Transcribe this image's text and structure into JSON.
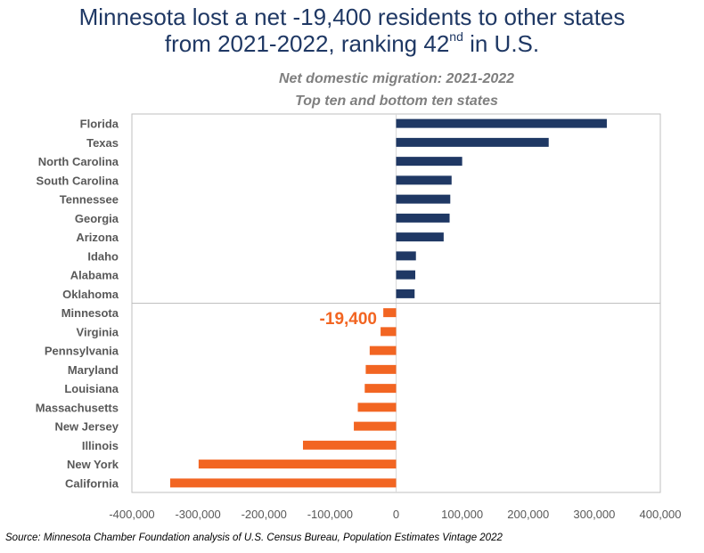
{
  "title": {
    "line1": "Minnesota lost a net -19,400 residents to other states",
    "line2_pre": "from 2021-2022, ranking 42",
    "line2_sup": "nd",
    "line2_post": " in U.S."
  },
  "source": "Source: Minnesota Chamber Foundation analysis of U.S. Census Bureau, Population Estimates Vintage 2022",
  "colors": {
    "top": "#1f3864",
    "bottom": "#f26522",
    "title": "#1f3864"
  },
  "chart_data": {
    "type": "bar",
    "orientation": "horizontal",
    "title": "Net domestic migration: 2021-2022",
    "subtitle": "Top ten and bottom ten states",
    "xlim": [
      -400000,
      400000
    ],
    "xticks": [
      "-400,000",
      "-300,000",
      "-200,000",
      "-100,000",
      "0",
      "100,000",
      "200,000",
      "300,000",
      "400,000"
    ],
    "tick_values": [
      -400000,
      -300000,
      -200000,
      -100000,
      0,
      100000,
      200000,
      300000,
      400000
    ],
    "grid": false,
    "categories": [
      "Florida",
      "Texas",
      "North Carolina",
      "South Carolina",
      "Tennessee",
      "Georgia",
      "Arizona",
      "Idaho",
      "Alabama",
      "Oklahoma",
      "Minnesota",
      "Virginia",
      "Pennsylvania",
      "Maryland",
      "Louisiana",
      "Massachusetts",
      "New Jersey",
      "Illinois",
      "New York",
      "California"
    ],
    "values": [
      319000,
      231000,
      100000,
      84000,
      82000,
      81000,
      72000,
      30000,
      29000,
      28000,
      -19400,
      -23500,
      -40000,
      -46000,
      -47500,
      -58000,
      -64000,
      -141000,
      -299000,
      -342000
    ],
    "annotation": {
      "category": "Minnesota",
      "text": "-19,400"
    }
  }
}
